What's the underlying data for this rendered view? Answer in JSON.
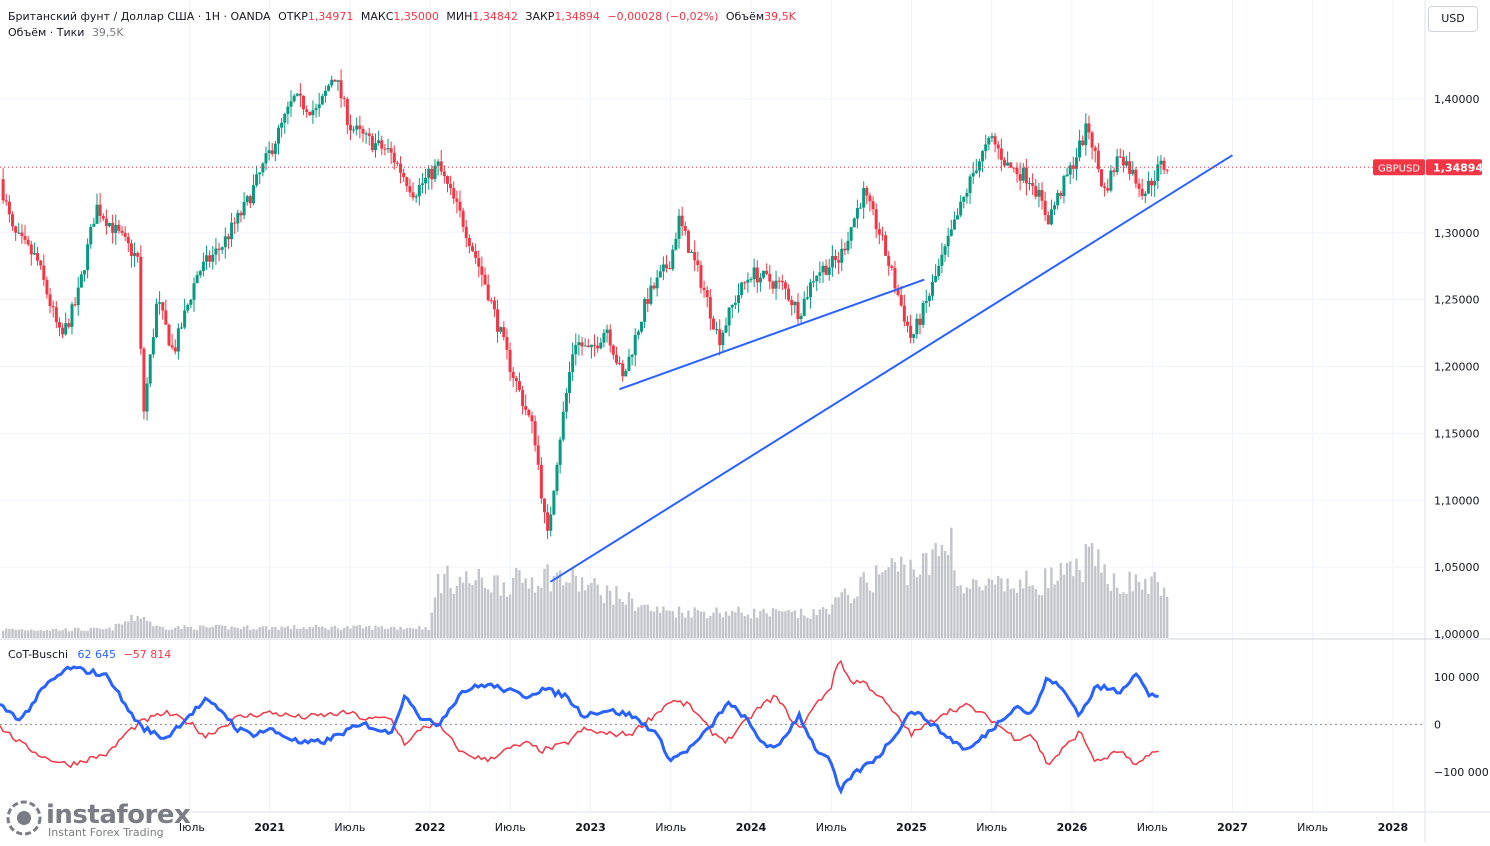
{
  "header": {
    "symbol": "Британский фунт / Доллар США · 1Н · OANDA",
    "open_label": "ОТКР",
    "open": "1,34971",
    "high_label": "МАКС",
    "high": "1,35000",
    "low_label": "МИН",
    "low": "1,34842",
    "close_label": "ЗАКР",
    "close": "1,34894",
    "change": "−0,00028 (−0,02%)",
    "volume_label": "Объём",
    "volume": "39,5K",
    "volume_line_label": "Объём · Тики",
    "volume_line_value": "39,5K"
  },
  "currency_button": "USD",
  "price_tag": {
    "symbol": "GBPUSD",
    "value": "1,34894"
  },
  "cot": {
    "name": "CoT-Buschi",
    "value1": "62 645",
    "value2": "−57 814"
  },
  "logo": {
    "main": "instaforex",
    "sub": "Instant Forex Trading"
  },
  "colors": {
    "up": "#089981",
    "down": "#f23645",
    "trend": "#2962ff",
    "volume": "#c3c5ca",
    "cot_blue": "#2962ff",
    "cot_red": "#f23645"
  },
  "chart_data": [
    {
      "type": "candlestick",
      "series_name": "GBPUSD",
      "y_axis_ticks": [
        "1,40000",
        "1,35000",
        "1,30000",
        "1,25000",
        "1,20000",
        "1,15000",
        "1,10000",
        "1,05000",
        "1,00000"
      ],
      "y_axis_values": [
        1.4,
        1.35,
        1.3,
        1.25,
        1.2,
        1.15,
        1.1,
        1.05,
        1.0
      ],
      "x_axis_ticks": [
        "Июль",
        "2021",
        "Июль",
        "2022",
        "Июль",
        "2023",
        "Июль",
        "2024",
        "Июль",
        "2025",
        "Июль",
        "2026",
        "Июль",
        "2027",
        "Июль",
        "2028"
      ],
      "x_axis_times": [
        2020.5,
        2021.0,
        2021.5,
        2022.0,
        2022.5,
        2023.0,
        2023.5,
        2024.0,
        2024.5,
        2025.0,
        2025.5,
        2026.0,
        2026.5,
        2027.0,
        2027.5,
        2028.0
      ],
      "ylim": [
        1.0,
        1.42
      ],
      "xlim": [
        2019.32,
        2028.2
      ],
      "last_price": 1.34894,
      "price_path": [
        [
          2019.32,
          1.34
        ],
        [
          2019.4,
          1.3
        ],
        [
          2019.55,
          1.28
        ],
        [
          2019.7,
          1.22
        ],
        [
          2019.8,
          1.25
        ],
        [
          2019.92,
          1.32
        ],
        [
          2020.05,
          1.3
        ],
        [
          2020.18,
          1.28
        ],
        [
          2020.21,
          1.16
        ],
        [
          2020.3,
          1.25
        ],
        [
          2020.4,
          1.21
        ],
        [
          2020.55,
          1.27
        ],
        [
          2020.7,
          1.29
        ],
        [
          2020.85,
          1.32
        ],
        [
          2021.0,
          1.36
        ],
        [
          2021.15,
          1.4
        ],
        [
          2021.3,
          1.39
        ],
        [
          2021.4,
          1.42
        ],
        [
          2021.5,
          1.38
        ],
        [
          2021.6,
          1.37
        ],
        [
          2021.75,
          1.36
        ],
        [
          2021.9,
          1.33
        ],
        [
          2022.05,
          1.35
        ],
        [
          2022.2,
          1.31
        ],
        [
          2022.35,
          1.26
        ],
        [
          2022.5,
          1.2
        ],
        [
          2022.65,
          1.15
        ],
        [
          2022.73,
          1.07
        ],
        [
          2022.8,
          1.14
        ],
        [
          2022.9,
          1.22
        ],
        [
          2023.0,
          1.21
        ],
        [
          2023.1,
          1.23
        ],
        [
          2023.2,
          1.19
        ],
        [
          2023.35,
          1.25
        ],
        [
          2023.5,
          1.28
        ],
        [
          2023.55,
          1.31
        ],
        [
          2023.7,
          1.26
        ],
        [
          2023.8,
          1.22
        ],
        [
          2023.9,
          1.25
        ],
        [
          2024.0,
          1.27
        ],
        [
          2024.2,
          1.26
        ],
        [
          2024.3,
          1.24
        ],
        [
          2024.4,
          1.27
        ],
        [
          2024.55,
          1.28
        ],
        [
          2024.7,
          1.33
        ],
        [
          2024.8,
          1.3
        ],
        [
          2024.9,
          1.26
        ],
        [
          2025.0,
          1.22
        ],
        [
          2025.1,
          1.25
        ],
        [
          2025.25,
          1.3
        ],
        [
          2025.4,
          1.35
        ],
        [
          2025.5,
          1.37
        ],
        [
          2025.6,
          1.35
        ],
        [
          2025.75,
          1.34
        ],
        [
          2025.85,
          1.31
        ],
        [
          2026.0,
          1.35
        ],
        [
          2026.1,
          1.38
        ],
        [
          2026.2,
          1.33
        ],
        [
          2026.3,
          1.36
        ],
        [
          2026.45,
          1.33
        ],
        [
          2026.55,
          1.35
        ],
        [
          2026.6,
          1.349
        ]
      ],
      "volume_path": [
        [
          2019.32,
          4
        ],
        [
          2020.0,
          4
        ],
        [
          2020.2,
          11
        ],
        [
          2020.3,
          5
        ],
        [
          2021.0,
          5
        ],
        [
          2022.0,
          5
        ],
        [
          2022.05,
          28
        ],
        [
          2022.5,
          26
        ],
        [
          2022.73,
          30
        ],
        [
          2022.9,
          27
        ],
        [
          2023.2,
          19
        ],
        [
          2023.4,
          13
        ],
        [
          2024.0,
          12
        ],
        [
          2024.4,
          11
        ],
        [
          2024.6,
          20
        ],
        [
          2024.85,
          33
        ],
        [
          2025.1,
          34
        ],
        [
          2025.25,
          48
        ],
        [
          2025.3,
          24
        ],
        [
          2025.6,
          24
        ],
        [
          2026.0,
          30
        ],
        [
          2026.1,
          38
        ],
        [
          2026.3,
          26
        ],
        [
          2026.5,
          26
        ],
        [
          2026.6,
          23
        ]
      ],
      "trendlines": [
        {
          "from": [
            2022.75,
            1.039
          ],
          "to": [
            2027.0,
            1.358
          ]
        },
        {
          "from": [
            2023.18,
            1.183
          ],
          "to": [
            2025.08,
            1.265
          ]
        }
      ]
    },
    {
      "type": "line",
      "series": [
        {
          "name": "CoT-Buschi",
          "color": "#2962ff",
          "last": 62645
        },
        {
          "name": "",
          "color": "#f23645",
          "last": -57814
        }
      ],
      "y_axis_ticks": [
        "100 000",
        "0",
        "−100 000"
      ],
      "y_axis_values": [
        100000,
        0,
        -100000
      ],
      "ylim": [
        -160000,
        165000
      ],
      "blue_path": [
        [
          2019.32,
          40000
        ],
        [
          2019.45,
          10000
        ],
        [
          2019.6,
          80000
        ],
        [
          2019.75,
          120000
        ],
        [
          2019.9,
          110000
        ],
        [
          2020.0,
          100000
        ],
        [
          2020.1,
          40000
        ],
        [
          2020.2,
          -5000
        ],
        [
          2020.35,
          -30000
        ],
        [
          2020.5,
          20000
        ],
        [
          2020.6,
          50000
        ],
        [
          2020.7,
          30000
        ],
        [
          2020.8,
          -10000
        ],
        [
          2020.9,
          -20000
        ],
        [
          2021.0,
          -10000
        ],
        [
          2021.2,
          -40000
        ],
        [
          2021.35,
          -35000
        ],
        [
          2021.5,
          -10000
        ],
        [
          2021.6,
          0
        ],
        [
          2021.75,
          -20000
        ],
        [
          2021.85,
          65000
        ],
        [
          2021.95,
          10000
        ],
        [
          2022.05,
          0
        ],
        [
          2022.2,
          70000
        ],
        [
          2022.35,
          85000
        ],
        [
          2022.5,
          70000
        ],
        [
          2022.6,
          60000
        ],
        [
          2022.7,
          75000
        ],
        [
          2022.85,
          60000
        ],
        [
          2022.95,
          20000
        ],
        [
          2023.1,
          30000
        ],
        [
          2023.25,
          20000
        ],
        [
          2023.4,
          -15000
        ],
        [
          2023.5,
          -75000
        ],
        [
          2023.62,
          -50000
        ],
        [
          2023.75,
          -5000
        ],
        [
          2023.85,
          45000
        ],
        [
          2023.95,
          20000
        ],
        [
          2024.05,
          -30000
        ],
        [
          2024.15,
          -55000
        ],
        [
          2024.3,
          20000
        ],
        [
          2024.4,
          -50000
        ],
        [
          2024.5,
          -80000
        ],
        [
          2024.55,
          -145000
        ],
        [
          2024.62,
          -110000
        ],
        [
          2024.7,
          -90000
        ],
        [
          2024.8,
          -65000
        ],
        [
          2024.9,
          -20000
        ],
        [
          2025.0,
          30000
        ],
        [
          2025.1,
          10000
        ],
        [
          2025.2,
          -20000
        ],
        [
          2025.35,
          -55000
        ],
        [
          2025.5,
          -10000
        ],
        [
          2025.65,
          40000
        ],
        [
          2025.75,
          20000
        ],
        [
          2025.85,
          100000
        ],
        [
          2025.95,
          70000
        ],
        [
          2026.05,
          20000
        ],
        [
          2026.15,
          80000
        ],
        [
          2026.3,
          70000
        ],
        [
          2026.4,
          110000
        ],
        [
          2026.48,
          60000
        ],
        [
          2026.55,
          62645
        ]
      ],
      "red_path": [
        [
          2019.32,
          -5000
        ],
        [
          2019.45,
          -40000
        ],
        [
          2019.6,
          -70000
        ],
        [
          2019.75,
          -85000
        ],
        [
          2019.9,
          -70000
        ],
        [
          2020.0,
          -60000
        ],
        [
          2020.1,
          -20000
        ],
        [
          2020.2,
          5000
        ],
        [
          2020.35,
          25000
        ],
        [
          2020.5,
          5000
        ],
        [
          2020.6,
          -25000
        ],
        [
          2020.7,
          -5000
        ],
        [
          2020.8,
          15000
        ],
        [
          2020.9,
          20000
        ],
        [
          2021.0,
          25000
        ],
        [
          2021.2,
          15000
        ],
        [
          2021.35,
          20000
        ],
        [
          2021.5,
          25000
        ],
        [
          2021.6,
          10000
        ],
        [
          2021.75,
          15000
        ],
        [
          2021.85,
          -45000
        ],
        [
          2021.95,
          -5000
        ],
        [
          2022.05,
          0
        ],
        [
          2022.2,
          -60000
        ],
        [
          2022.35,
          -75000
        ],
        [
          2022.5,
          -50000
        ],
        [
          2022.6,
          -40000
        ],
        [
          2022.7,
          -55000
        ],
        [
          2022.85,
          -40000
        ],
        [
          2022.95,
          -10000
        ],
        [
          2023.1,
          -20000
        ],
        [
          2023.25,
          -20000
        ],
        [
          2023.4,
          20000
        ],
        [
          2023.5,
          50000
        ],
        [
          2023.62,
          40000
        ],
        [
          2023.75,
          -15000
        ],
        [
          2023.85,
          -35000
        ],
        [
          2023.95,
          0
        ],
        [
          2024.05,
          35000
        ],
        [
          2024.15,
          60000
        ],
        [
          2024.3,
          -10000
        ],
        [
          2024.4,
          40000
        ],
        [
          2024.5,
          80000
        ],
        [
          2024.55,
          140000
        ],
        [
          2024.62,
          90000
        ],
        [
          2024.7,
          90000
        ],
        [
          2024.8,
          60000
        ],
        [
          2024.9,
          20000
        ],
        [
          2025.0,
          -20000
        ],
        [
          2025.1,
          0
        ],
        [
          2025.2,
          25000
        ],
        [
          2025.35,
          40000
        ],
        [
          2025.5,
          10000
        ],
        [
          2025.65,
          -30000
        ],
        [
          2025.75,
          -20000
        ],
        [
          2025.85,
          -85000
        ],
        [
          2025.95,
          -50000
        ],
        [
          2026.05,
          -15000
        ],
        [
          2026.15,
          -80000
        ],
        [
          2026.3,
          -55000
        ],
        [
          2026.4,
          -90000
        ],
        [
          2026.48,
          -60000
        ],
        [
          2026.55,
          -57814
        ]
      ]
    }
  ]
}
